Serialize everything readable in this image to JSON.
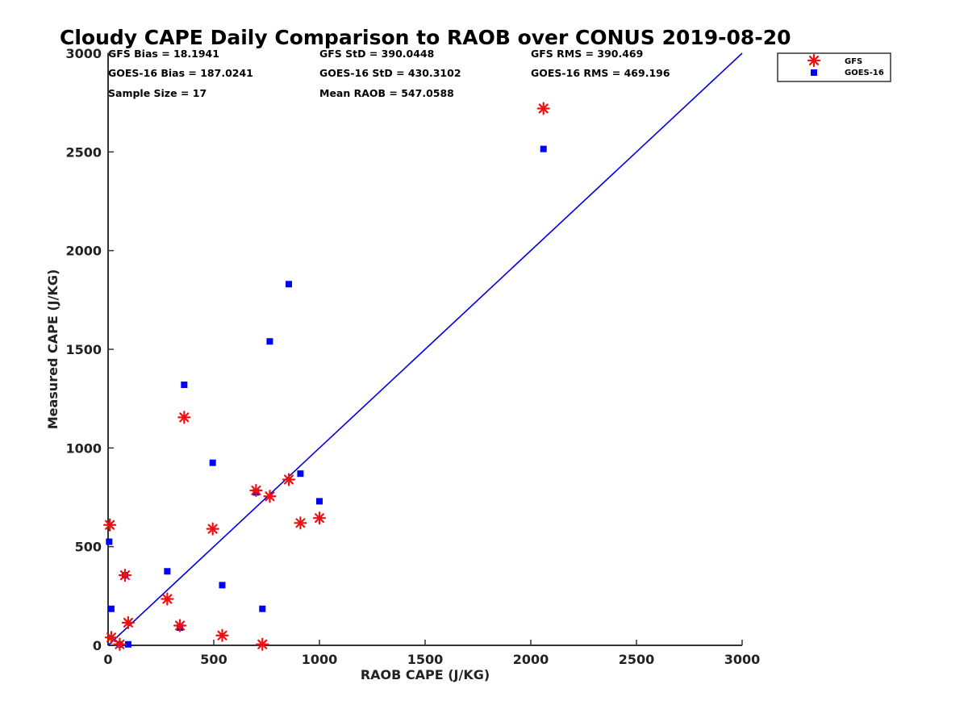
{
  "chart_data": {
    "type": "scatter",
    "title": "Cloudy CAPE Daily Comparison to RAOB over CONUS 2019-08-20",
    "xlabel": "RAOB CAPE (J/KG)",
    "ylabel": "Measured CAPE (J/KG)",
    "xlim": [
      0,
      3000
    ],
    "ylim": [
      0,
      3000
    ],
    "xticks": [
      0,
      500,
      1000,
      1500,
      2000,
      2500,
      3000
    ],
    "yticks": [
      0,
      500,
      1000,
      1500,
      2000,
      2500,
      3000
    ],
    "grid": false,
    "legend_position": "top-right-outside",
    "stats": [
      [
        "GFS Bias = 18.1941",
        "GFS StD = 390.0448",
        "GFS RMS = 390.469"
      ],
      [
        "GOES-16 Bias = 187.0241",
        "GOES-16 StD = 430.3102",
        "GOES-16 RMS = 469.196"
      ],
      [
        "Sample Size = 17",
        "Mean RAOB = 547.0588",
        ""
      ]
    ],
    "reference_line": {
      "from": [
        0,
        0
      ],
      "to": [
        3000,
        3000
      ],
      "color": "#0000dd"
    },
    "series": [
      {
        "name": "GFS",
        "marker": "asterisk",
        "color": "#ee1111",
        "points": [
          [
            8,
            610
          ],
          [
            15,
            40
          ],
          [
            55,
            5
          ],
          [
            80,
            355
          ],
          [
            95,
            115
          ],
          [
            280,
            235
          ],
          [
            340,
            100
          ],
          [
            360,
            1155
          ],
          [
            495,
            590
          ],
          [
            540,
            50
          ],
          [
            700,
            785
          ],
          [
            730,
            5
          ],
          [
            765,
            755
          ],
          [
            855,
            840
          ],
          [
            910,
            620
          ],
          [
            1000,
            645
          ],
          [
            2060,
            2720
          ]
        ]
      },
      {
        "name": "GOES-16",
        "marker": "square",
        "color": "#0000ff",
        "points": [
          [
            5,
            525
          ],
          [
            15,
            185
          ],
          [
            55,
            5
          ],
          [
            80,
            355
          ],
          [
            95,
            5
          ],
          [
            280,
            375
          ],
          [
            340,
            90
          ],
          [
            360,
            1320
          ],
          [
            495,
            925
          ],
          [
            540,
            305
          ],
          [
            700,
            775
          ],
          [
            730,
            185
          ],
          [
            765,
            1540
          ],
          [
            855,
            1830
          ],
          [
            910,
            870
          ],
          [
            1000,
            730
          ],
          [
            2060,
            2515
          ]
        ]
      }
    ]
  }
}
